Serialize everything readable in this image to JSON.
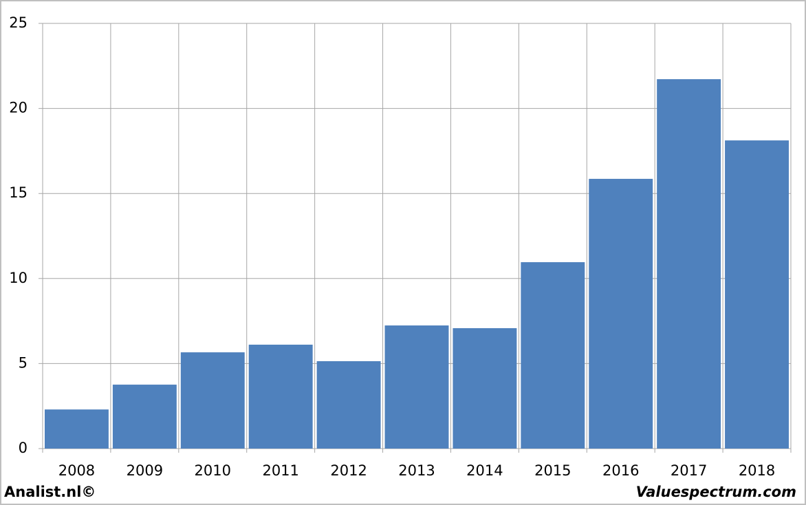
{
  "chart_data": {
    "type": "bar",
    "categories": [
      "2008",
      "2009",
      "2010",
      "2011",
      "2012",
      "2013",
      "2014",
      "2015",
      "2016",
      "2017",
      "2018"
    ],
    "values": [
      2.3,
      3.76,
      5.66,
      6.11,
      5.14,
      7.24,
      7.08,
      10.96,
      15.86,
      21.72,
      18.12
    ],
    "color": "#4f81bd",
    "ylim": [
      0,
      25
    ],
    "yticks": [
      0,
      5,
      10,
      15,
      20,
      25
    ],
    "grid": true
  },
  "footer": {
    "left": "Analist.nl©",
    "right": "Valuespectrum.com"
  }
}
